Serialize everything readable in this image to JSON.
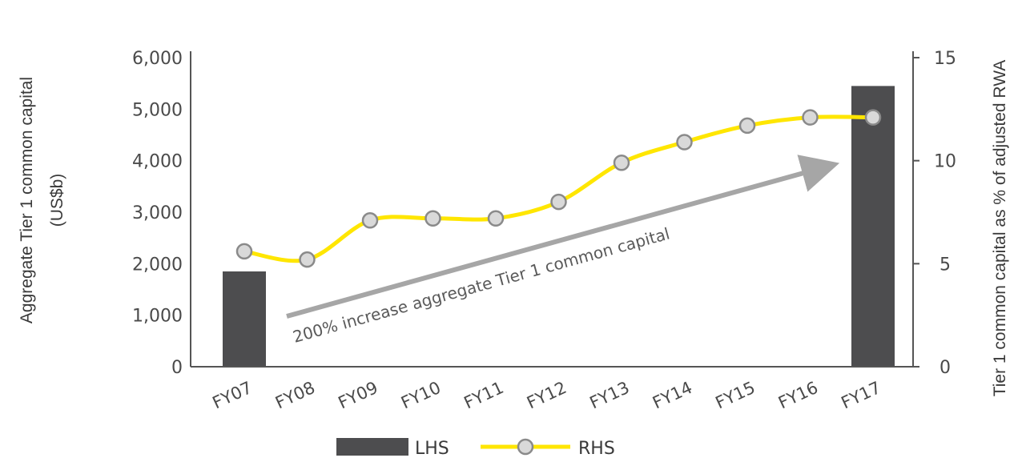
{
  "chart_data": {
    "type": "bar+line",
    "categories": [
      "FY07",
      "FY08",
      "FY09",
      "FY10",
      "FY11",
      "FY12",
      "FY13",
      "FY14",
      "FY15",
      "FY16",
      "FY17"
    ],
    "series": [
      {
        "name": "LHS",
        "type": "bar",
        "axis": "left",
        "values": [
          1850,
          null,
          null,
          null,
          null,
          null,
          null,
          null,
          null,
          null,
          5450
        ]
      },
      {
        "name": "RHS",
        "type": "line",
        "axis": "right",
        "values": [
          5.6,
          5.2,
          7.1,
          7.2,
          7.2,
          8.0,
          9.9,
          10.9,
          11.7,
          12.1,
          12.1
        ]
      }
    ],
    "ylabel_left": "Aggregate Tier 1 common capital (US$b)",
    "ylabel_left_lines": [
      "Aggregate Tier 1 common capital",
      "(US$b)"
    ],
    "ylabel_right": "Tier 1 common capital as % of adjusted RWA",
    "ylim_left": [
      0,
      6000
    ],
    "ylim_right": [
      0,
      15
    ],
    "yticks_left": [
      "0",
      "1,000",
      "2,000",
      "3,000",
      "4,000",
      "5,000",
      "6,000"
    ],
    "yticks_right": [
      "0",
      "5",
      "10",
      "15"
    ],
    "annotation": "200% increase aggregate Tier 1 common capital",
    "legend": [
      "LHS",
      "RHS"
    ],
    "legend_position": "bottom-center",
    "grid": false,
    "colors": {
      "bar": "#4d4d4f",
      "line": "#ffe600",
      "marker_fill": "#d9d9d9",
      "marker_stroke": "#8a8a8a",
      "arrow": "#a6a6a6",
      "axis": "#555555"
    }
  }
}
